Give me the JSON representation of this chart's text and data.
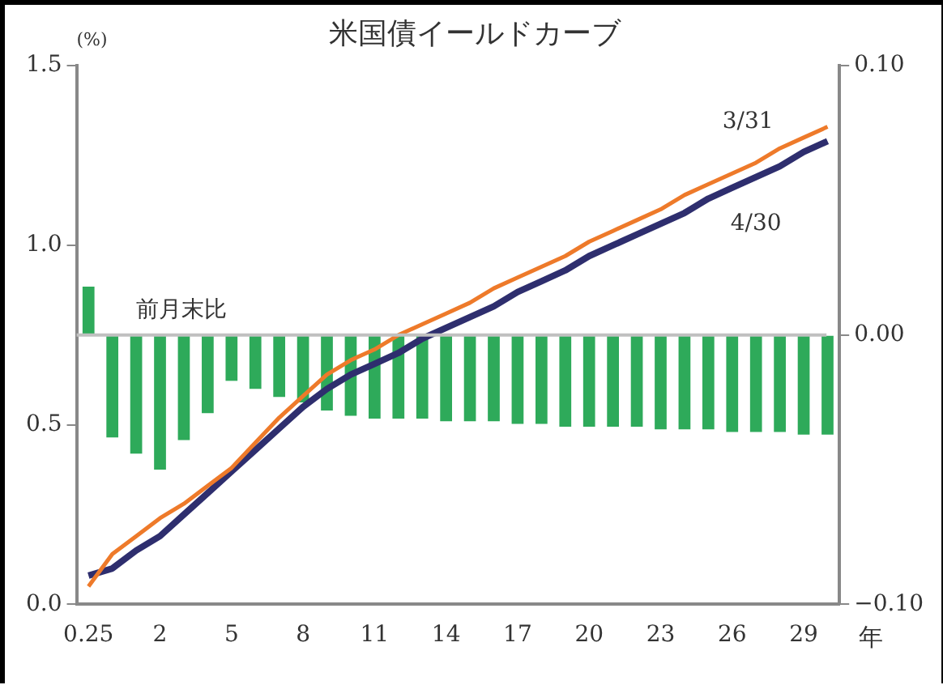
{
  "chart_data": {
    "type": "line",
    "title": "米国債イールドカーブ",
    "ylabel": "(%)",
    "xlabel": "年",
    "categories": [
      "0.25",
      null,
      null,
      "2",
      null,
      null,
      "5",
      null,
      null,
      "8",
      null,
      null,
      "11",
      null,
      null,
      "14",
      null,
      null,
      "17",
      null,
      null,
      "20",
      null,
      null,
      "23",
      null,
      null,
      "26",
      null,
      null,
      "29",
      null
    ],
    "series": [
      {
        "name": "前月末比",
        "type": "bar",
        "axis": "y2",
        "color": "#2eaa5a",
        "values": [
          0.018,
          -0.038,
          -0.044,
          -0.05,
          -0.039,
          -0.029,
          -0.017,
          -0.02,
          -0.023,
          -0.025,
          -0.028,
          -0.03,
          -0.031,
          -0.031,
          -0.031,
          -0.032,
          -0.032,
          -0.032,
          -0.033,
          -0.033,
          -0.034,
          -0.034,
          -0.034,
          -0.034,
          -0.035,
          -0.035,
          -0.035,
          -0.036,
          -0.036,
          -0.036,
          -0.037,
          -0.037
        ]
      },
      {
        "name": "3/31",
        "color": "#ee7a2a",
        "values": [
          0.05,
          0.14,
          0.19,
          0.24,
          0.28,
          0.33,
          0.38,
          0.45,
          0.52,
          0.58,
          0.64,
          0.68,
          0.71,
          0.75,
          0.78,
          0.81,
          0.84,
          0.88,
          0.91,
          0.94,
          0.97,
          1.01,
          1.04,
          1.07,
          1.1,
          1.14,
          1.17,
          1.2,
          1.23,
          1.27,
          1.3,
          1.33
        ]
      },
      {
        "name": "4/30",
        "color": "#2e2e6e",
        "values": [
          0.08,
          0.1,
          0.15,
          0.19,
          0.25,
          0.31,
          0.37,
          0.43,
          0.49,
          0.55,
          0.6,
          0.64,
          0.67,
          0.7,
          0.74,
          0.77,
          0.8,
          0.83,
          0.87,
          0.9,
          0.93,
          0.97,
          1.0,
          1.03,
          1.06,
          1.09,
          1.13,
          1.16,
          1.19,
          1.22,
          1.26,
          1.29
        ]
      }
    ],
    "ylim": [
      0,
      1.5
    ],
    "yticks": [
      {
        "value": 0,
        "label": "0.0"
      },
      {
        "value": 0.5,
        "label": "0.5"
      },
      {
        "value": 1,
        "label": "1.0"
      },
      {
        "value": 1.5,
        "label": "1.5"
      }
    ],
    "y2lim": [
      -0.1,
      0.1
    ],
    "y2ticks": [
      {
        "value": -0.1,
        "label": "−0.10"
      },
      {
        "value": 0,
        "label": "0.00"
      },
      {
        "value": 0.1,
        "label": "0.10"
      }
    ],
    "ref_lines": [
      {
        "axis": "y2",
        "value": 0,
        "color": "#c0c0c0"
      }
    ],
    "grid": false,
    "legend": false,
    "marker": "none",
    "line_style": "solid"
  }
}
